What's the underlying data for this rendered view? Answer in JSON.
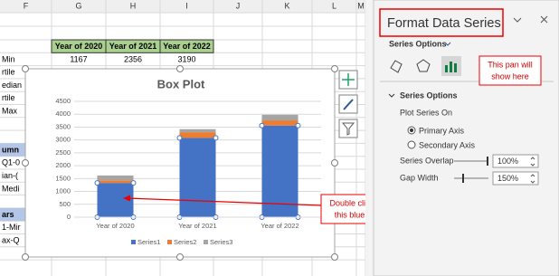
{
  "spreadsheet": {
    "columns": [
      "F",
      "G",
      "H",
      "I",
      "J",
      "K",
      "L",
      "M"
    ],
    "year_headers": [
      "Year of 2020",
      "Year of 2021",
      "Year of 2022"
    ],
    "min_values": [
      1167,
      2356,
      3190
    ],
    "row_labels": [
      "Min",
      "rtile",
      "edian",
      "rtile",
      "Max",
      null,
      null,
      "umn",
      "Q1-0",
      "ian-(",
      "Medi",
      null,
      "ars",
      "1-Mir",
      "ax-Q"
    ]
  },
  "chart_data": {
    "type": "stacked_bar",
    "title": "Box Plot",
    "categories": [
      "Year of 2020",
      "Year of 2021",
      "Year of 2022"
    ],
    "series": [
      {
        "name": "Series1",
        "color": "#4472c4",
        "values": [
          1330,
          3080,
          3560
        ]
      },
      {
        "name": "Series2",
        "color": "#ed7d31",
        "values": [
          100,
          220,
          200
        ]
      },
      {
        "name": "Series3",
        "color": "#a5a5a5",
        "values": [
          190,
          120,
          220
        ]
      }
    ],
    "ylim": [
      0,
      4500
    ],
    "yticks": [
      0,
      500,
      1000,
      1500,
      2000,
      2500,
      3000,
      3500,
      4000,
      4500
    ],
    "grid": true,
    "legend": "bottom",
    "annotation": [
      "Double click on",
      "this blue box"
    ]
  },
  "panel": {
    "title": "Format Data Series",
    "tab": "Series Options",
    "callout": [
      "This pan will",
      "show here"
    ],
    "section": "Series Options",
    "plot_on": "Plot Series On",
    "primary": "Primary Axis",
    "secondary": "Secondary Axis",
    "overlap_label": "Series Overlap",
    "overlap_value": "100%",
    "gap_label": "Gap Width",
    "gap_value": "150%"
  }
}
